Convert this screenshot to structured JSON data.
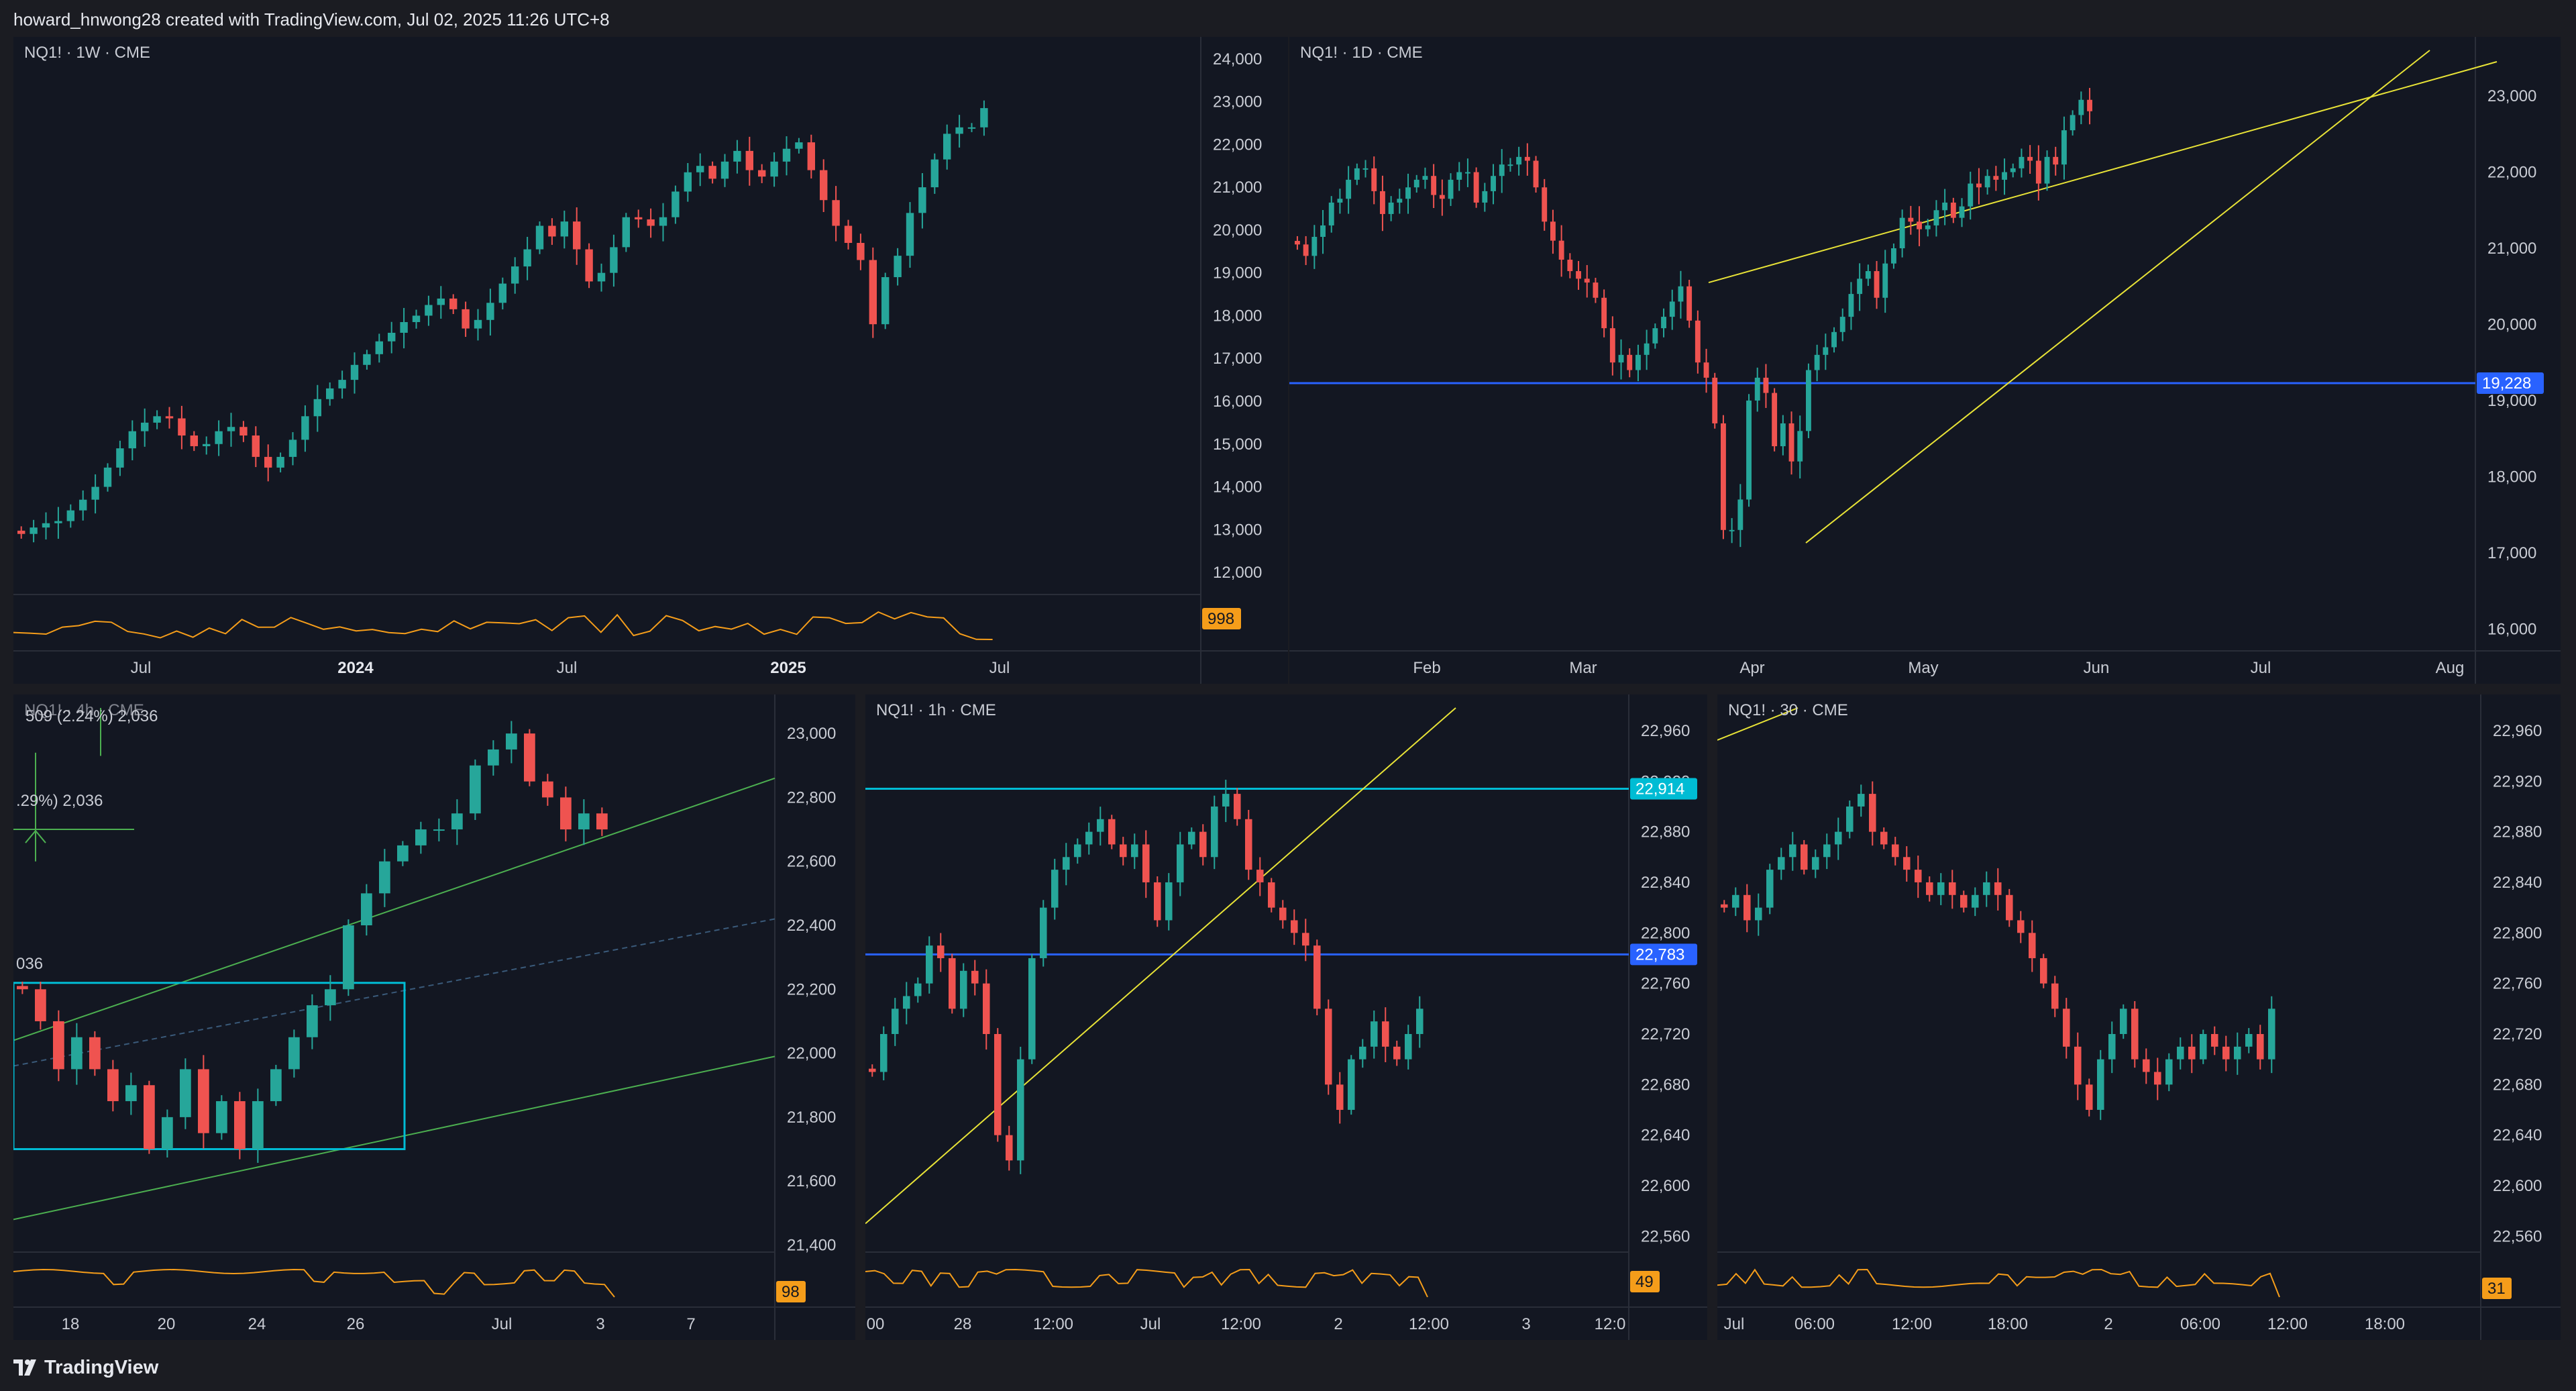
{
  "header": {
    "text": "howard_hnwong28 created with TradingView.com, Jul 02, 2025 11:26 UTC+8"
  },
  "footer": {
    "brand": "TradingView"
  },
  "colors": {
    "up": "#26a69a",
    "down": "#ef5350",
    "bg": "#131722",
    "osc": "#f59d1a",
    "hline_blue": "#2962ff",
    "hline_cyan": "#00bcd4",
    "trend_yellow": "#e8e337",
    "channel_green": "#4caf50"
  },
  "panels": [
    {
      "id": "weekly",
      "title": "NQ1! · 1W · CME",
      "y_ticks": [
        "24,000",
        "23,000",
        "22,000",
        "21,000",
        "20,000",
        "19,000",
        "18,000",
        "17,000",
        "16,000",
        "15,000",
        "14,000",
        "13,000",
        "12,000"
      ],
      "x_ticks": [
        "Jul",
        "2024",
        "Jul",
        "2025",
        "Jul"
      ],
      "oscillator_badge": "998",
      "price_range": [
        11500,
        24200
      ],
      "price_points": [
        12900,
        13050,
        13150,
        13200,
        13450,
        13700,
        14000,
        14450,
        14900,
        15300,
        15500,
        15650,
        15600,
        15200,
        14950,
        15000,
        15300,
        15400,
        15200,
        14700,
        14450,
        14700,
        15100,
        15650,
        16050,
        16300,
        16500,
        16850,
        17100,
        17400,
        17600,
        17850,
        18000,
        18250,
        18400,
        18150,
        17700,
        17900,
        18300,
        18750,
        19150,
        19550,
        20100,
        19850,
        20200,
        19550,
        18800,
        19000,
        19600,
        20300,
        20250,
        20100,
        20300,
        20900,
        21350,
        21500,
        21200,
        21600,
        21850,
        21400,
        21250,
        21600,
        21900,
        22050,
        21400,
        20700,
        20100,
        19700,
        19300,
        17800,
        18900,
        19400,
        20400,
        21000,
        21650,
        22250,
        22400,
        22400,
        22850
      ]
    },
    {
      "id": "daily",
      "title": "NQ1! · 1D · CME",
      "y_ticks": [
        "23,000",
        "22,000",
        "21,000",
        "20,000",
        "19,000",
        "18,000",
        "17,000",
        "16,000"
      ],
      "x_ticks": [
        "Feb",
        "Mar",
        "Apr",
        "May",
        "Jun",
        "Jul",
        "Aug"
      ],
      "price_badge": "19,228",
      "price_range": [
        15800,
        23600
      ],
      "price_points": [
        21050,
        20900,
        21150,
        21300,
        21600,
        21650,
        21900,
        22050,
        22050,
        21750,
        21450,
        21600,
        21650,
        21800,
        21900,
        21950,
        21700,
        21650,
        21900,
        22000,
        22000,
        21600,
        21750,
        21950,
        22100,
        22100,
        22200,
        22150,
        21800,
        21350,
        21100,
        20850,
        20700,
        20600,
        20550,
        20350,
        19950,
        19500,
        19600,
        19400,
        19600,
        19750,
        19950,
        20100,
        20300,
        20500,
        20050,
        19500,
        19300,
        18700,
        17300,
        17300,
        17700,
        19000,
        19300,
        19100,
        18400,
        18700,
        18200,
        18600,
        19400,
        19600,
        19700,
        19900,
        20100,
        20400,
        20600,
        20700,
        20350,
        20800,
        21000,
        21400,
        21350,
        21250,
        21300,
        21500,
        21600,
        21400,
        21550,
        21850,
        21800,
        21950,
        21900,
        22000,
        22050,
        22200,
        22150,
        21850,
        22200,
        22100,
        22550,
        22750,
        22950,
        22800
      ]
    },
    {
      "id": "h4",
      "title": "NQ1! · 4h · CME",
      "y_ticks": [
        "23,000",
        "22,800",
        "22,600",
        "22,400",
        "22,200",
        "22,000",
        "21,800",
        "21,600",
        "21,400"
      ],
      "x_ticks": [
        "18",
        "20",
        "24",
        "26",
        "Jul",
        "3",
        "7"
      ],
      "measure_text_top": "509 (2.24%) 2,036",
      "measure_text_mid": ".29%) 2,036",
      "measure_text_left": "036",
      "oscillator_badge": "98",
      "price_range": [
        21380,
        23080
      ],
      "price_points": [
        22200,
        22100,
        21950,
        22050,
        21950,
        21850,
        21900,
        21700,
        21800,
        21950,
        21750,
        21850,
        21700,
        21850,
        21950,
        22050,
        22150,
        22200,
        22400,
        22500,
        22600,
        22650,
        22700,
        22700,
        22750,
        22900,
        22950,
        23000,
        22850,
        22800,
        22700,
        22750,
        22700
      ]
    },
    {
      "id": "h1",
      "title": "NQ1! · 1h · CME",
      "y_ticks": [
        "22,960",
        "22,920",
        "22,880",
        "22,840",
        "22,800",
        "22,760",
        "22,720",
        "22,680",
        "22,640",
        "22,600",
        "22,560"
      ],
      "x_ticks": [
        "00",
        "28",
        "12:00",
        "Jul",
        "12:00",
        "2",
        "12:00",
        "3",
        "12:0"
      ],
      "price_badge_top": "22,914",
      "price_badge_mid": "22,783",
      "oscillator_badge": "49",
      "price_range": [
        22548,
        22978
      ],
      "price_points": [
        22690,
        22720,
        22740,
        22750,
        22760,
        22790,
        22780,
        22740,
        22770,
        22760,
        22720,
        22640,
        22620,
        22700,
        22780,
        22820,
        22850,
        22860,
        22870,
        22880,
        22890,
        22870,
        22860,
        22870,
        22840,
        22810,
        22840,
        22870,
        22880,
        22860,
        22900,
        22910,
        22890,
        22850,
        22840,
        22820,
        22810,
        22800,
        22790,
        22740,
        22680,
        22660,
        22700,
        22710,
        22730,
        22710,
        22700,
        22720,
        22740
      ]
    },
    {
      "id": "m30",
      "title": "NQ1! · 30 · CME",
      "y_ticks": [
        "22,960",
        "22,920",
        "22,880",
        "22,840",
        "22,800",
        "22,760",
        "22,720",
        "22,680",
        "22,640",
        "22,600",
        "22,560"
      ],
      "x_ticks": [
        "Jul",
        "06:00",
        "12:00",
        "18:00",
        "2",
        "06:00",
        "12:00",
        "18:00"
      ],
      "oscillator_badge": "31",
      "price_range": [
        22548,
        22978
      ],
      "price_points": [
        22820,
        22830,
        22810,
        22820,
        22850,
        22860,
        22870,
        22850,
        22860,
        22870,
        22880,
        22900,
        22910,
        22880,
        22870,
        22860,
        22850,
        22840,
        22830,
        22840,
        22830,
        22820,
        22830,
        22840,
        22830,
        22810,
        22800,
        22780,
        22760,
        22740,
        22710,
        22680,
        22660,
        22700,
        22720,
        22740,
        22700,
        22690,
        22680,
        22700,
        22710,
        22700,
        22720,
        22710,
        22700,
        22710,
        22720,
        22700,
        22740
      ]
    }
  ]
}
